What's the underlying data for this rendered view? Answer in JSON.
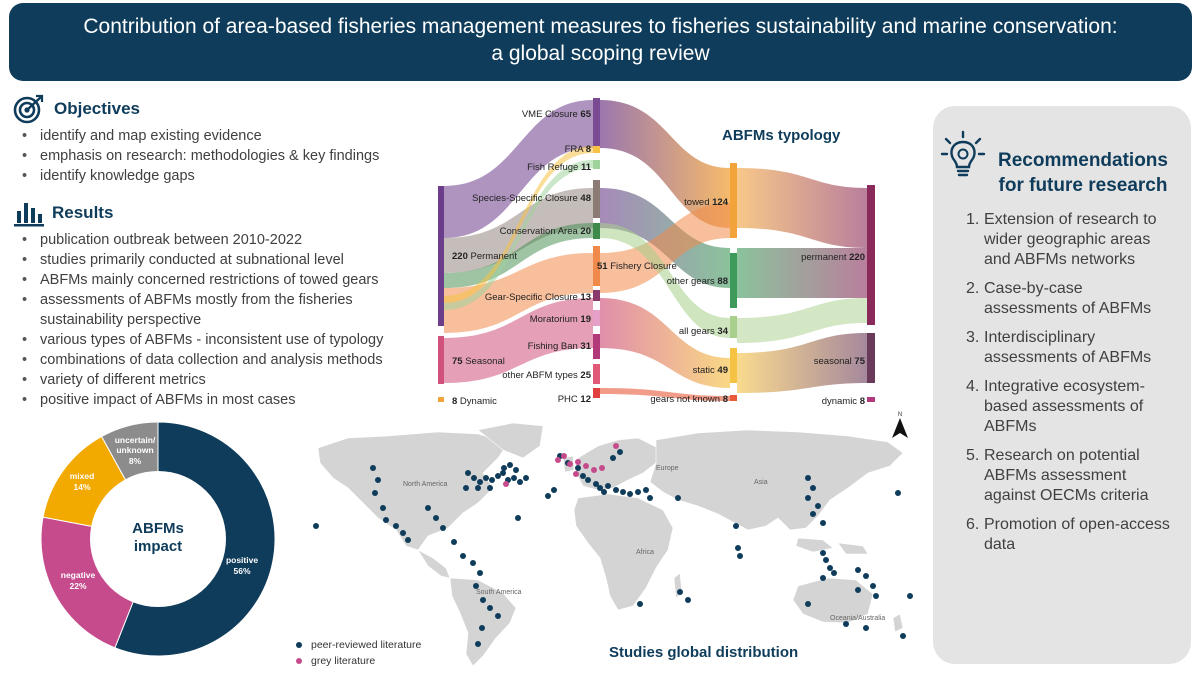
{
  "title": {
    "line1": "Contribution of area-based fisheries management measures to fisheries sustainability and marine conservation:",
    "line2": "a global scoping review"
  },
  "objectives": {
    "heading": "Objectives",
    "icon": "target-icon",
    "items": [
      "identify and map existing evidence",
      "emphasis on research: methodologies & key findings",
      "identify knowledge gaps"
    ]
  },
  "results": {
    "heading": "Results",
    "icon": "bar-chart-icon",
    "items": [
      "publication outbreak between 2010-2022",
      "studies primarily conducted at subnational level",
      "ABFMs mainly concerned restrictions of towed gears",
      "assessments of ABFMs mostly from the fisheries sustainability perspective",
      "various types of ABFMs - inconsistent use of typology",
      "combinations of data collection and analysis methods",
      "variety of different metrics",
      "positive impact of ABFMs in most cases"
    ]
  },
  "sankey": {
    "title": "ABFMs typology",
    "left_nodes": [
      {
        "label": "Permanent",
        "value": 220,
        "color": "#6b3d8a"
      },
      {
        "label": "Seasonal",
        "value": 75,
        "color": "#d0527c"
      },
      {
        "label": "Dynamic",
        "value": 8,
        "color": "#f2a33a"
      }
    ],
    "mid_nodes": [
      {
        "label": "VME Closure",
        "value": 65,
        "color": "#7a4a92"
      },
      {
        "label": "FRA",
        "value": 8,
        "color": "#f6c244"
      },
      {
        "label": "Fish Refuge",
        "value": 11,
        "color": "#9fd39c"
      },
      {
        "label": "Species-Specific Closure",
        "value": 48,
        "color": "#8b7b74"
      },
      {
        "label": "Conservation Area",
        "value": 20,
        "color": "#3e8a4a"
      },
      {
        "label": "Fishery Closure",
        "value": 51,
        "color": "#f08a4b"
      },
      {
        "label": "Gear-Specific Closure",
        "value": 13,
        "color": "#8a3a6a"
      },
      {
        "label": "Moratorium",
        "value": 19,
        "color": "#e4a0c8"
      },
      {
        "label": "Fishing Ban",
        "value": 31,
        "color": "#b33a7a"
      },
      {
        "label": "other ABFM types",
        "value": 25,
        "color": "#e05a78"
      },
      {
        "label": "PHC",
        "value": 12,
        "color": "#e04040"
      }
    ],
    "gear_nodes": [
      {
        "label": "towed",
        "value": 124,
        "color": "#f2a33a"
      },
      {
        "label": "other gears",
        "value": 88,
        "color": "#3e9a5a"
      },
      {
        "label": "all gears",
        "value": 34,
        "color": "#a8d08c"
      },
      {
        "label": "static",
        "value": 49,
        "color": "#f6c244"
      },
      {
        "label": "gears not known",
        "value": 8,
        "color": "#e85a3a"
      }
    ],
    "right_nodes": [
      {
        "label": "permanent",
        "value": 220,
        "color": "#8a2a5a"
      },
      {
        "label": "seasonal",
        "value": 75,
        "color": "#6a3a5a"
      },
      {
        "label": "dynamic",
        "value": 8,
        "color": "#b33a7a"
      }
    ]
  },
  "donut": {
    "center_line1": "ABFMs",
    "center_line2": "impact",
    "slices": [
      {
        "label": "positive",
        "pct_label": "56%",
        "value": 56,
        "color": "#0e3c5a"
      },
      {
        "label": "negative",
        "pct_label": "22%",
        "value": 22,
        "color": "#c64b8c"
      },
      {
        "label": "mixed",
        "pct_label": "14%",
        "value": 14,
        "color": "#f2a900"
      },
      {
        "label": "uncertain/ unknown",
        "pct_label": "8%",
        "value": 8,
        "color": "#8c8c8c"
      }
    ]
  },
  "map": {
    "title": "Studies global distribution",
    "legend": [
      {
        "label": "peer-reviewed literature",
        "color": "#0e3c5a"
      },
      {
        "label": "grey literature",
        "color": "#c64b8c"
      }
    ],
    "regions": [
      "North America",
      "Europe",
      "Asia",
      "Africa",
      "South America",
      "Oceania/Australia"
    ],
    "north_label": "N"
  },
  "recommendations": {
    "title_line1": "Recommendations",
    "title_line2": "for future research",
    "icon": "lightbulb-icon",
    "items": [
      "Extension of research to wider geographic areas and ABFMs networks",
      "Case-by-case assessments of ABFMs",
      "Interdisciplinary assessments of ABFMs",
      "Integrative ecosystem-based assessments of ABFMs",
      "Research on potential ABFMs assessment against OECMs criteria",
      "Promotion of open-access data"
    ]
  }
}
